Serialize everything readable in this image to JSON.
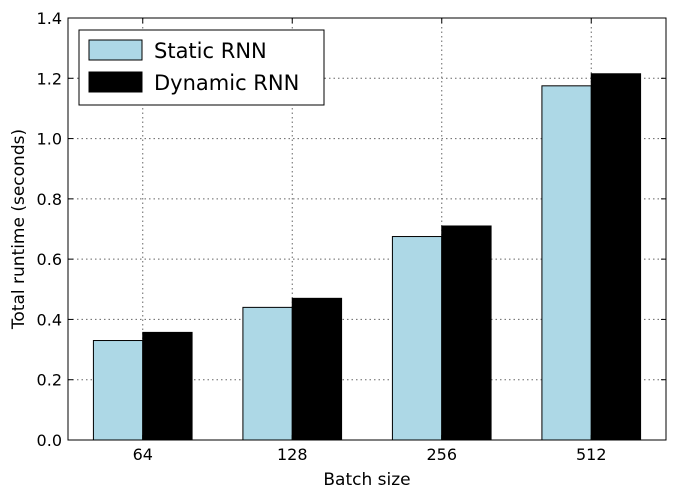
{
  "chart_data": {
    "type": "bar",
    "categories": [
      "64",
      "128",
      "256",
      "512"
    ],
    "series": [
      {
        "name": "Static RNN",
        "values": [
          0.33,
          0.44,
          0.675,
          1.175
        ],
        "color": "#add8e6"
      },
      {
        "name": "Dynamic RNN",
        "values": [
          0.357,
          0.47,
          0.71,
          1.215
        ],
        "color": "#000000"
      }
    ],
    "xlabel": "Batch size",
    "ylabel": "Total runtime (seconds)",
    "ylim": [
      0,
      1.4
    ],
    "yticks": [
      "0.0",
      "0.2",
      "0.4",
      "0.6",
      "0.8",
      "1.0",
      "1.2",
      "1.4"
    ],
    "grid": true,
    "legend_position": "top-left"
  }
}
